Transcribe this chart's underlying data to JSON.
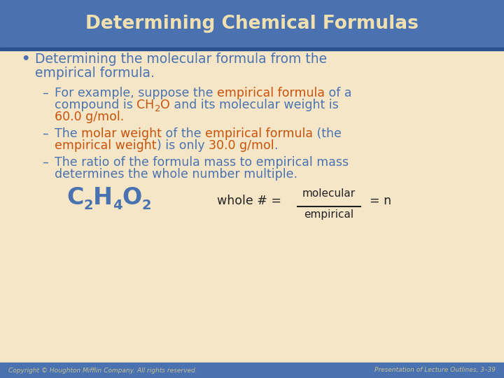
{
  "title": "Determining Chemical Formulas",
  "title_bg": "#4a72b0",
  "title_color": "#f0e0b0",
  "body_bg": "#f5e6c8",
  "footer_bg": "#4a72b0",
  "footer_left": "Copyright © Houghton Mifflin Company. All rights reserved.",
  "footer_right": "Presentation of Lecture Outlines, 3–39",
  "footer_color": "#c8c090",
  "blue_color": "#4a72b0",
  "orange_color": "#c8520a",
  "dark_color": "#222222",
  "title_fontsize": 19,
  "body_fontsize": 12.5,
  "bullet_fontsize": 13.5,
  "formula_fontsize": 24,
  "sub_fontsize": 14,
  "footer_fontsize": 6.5
}
